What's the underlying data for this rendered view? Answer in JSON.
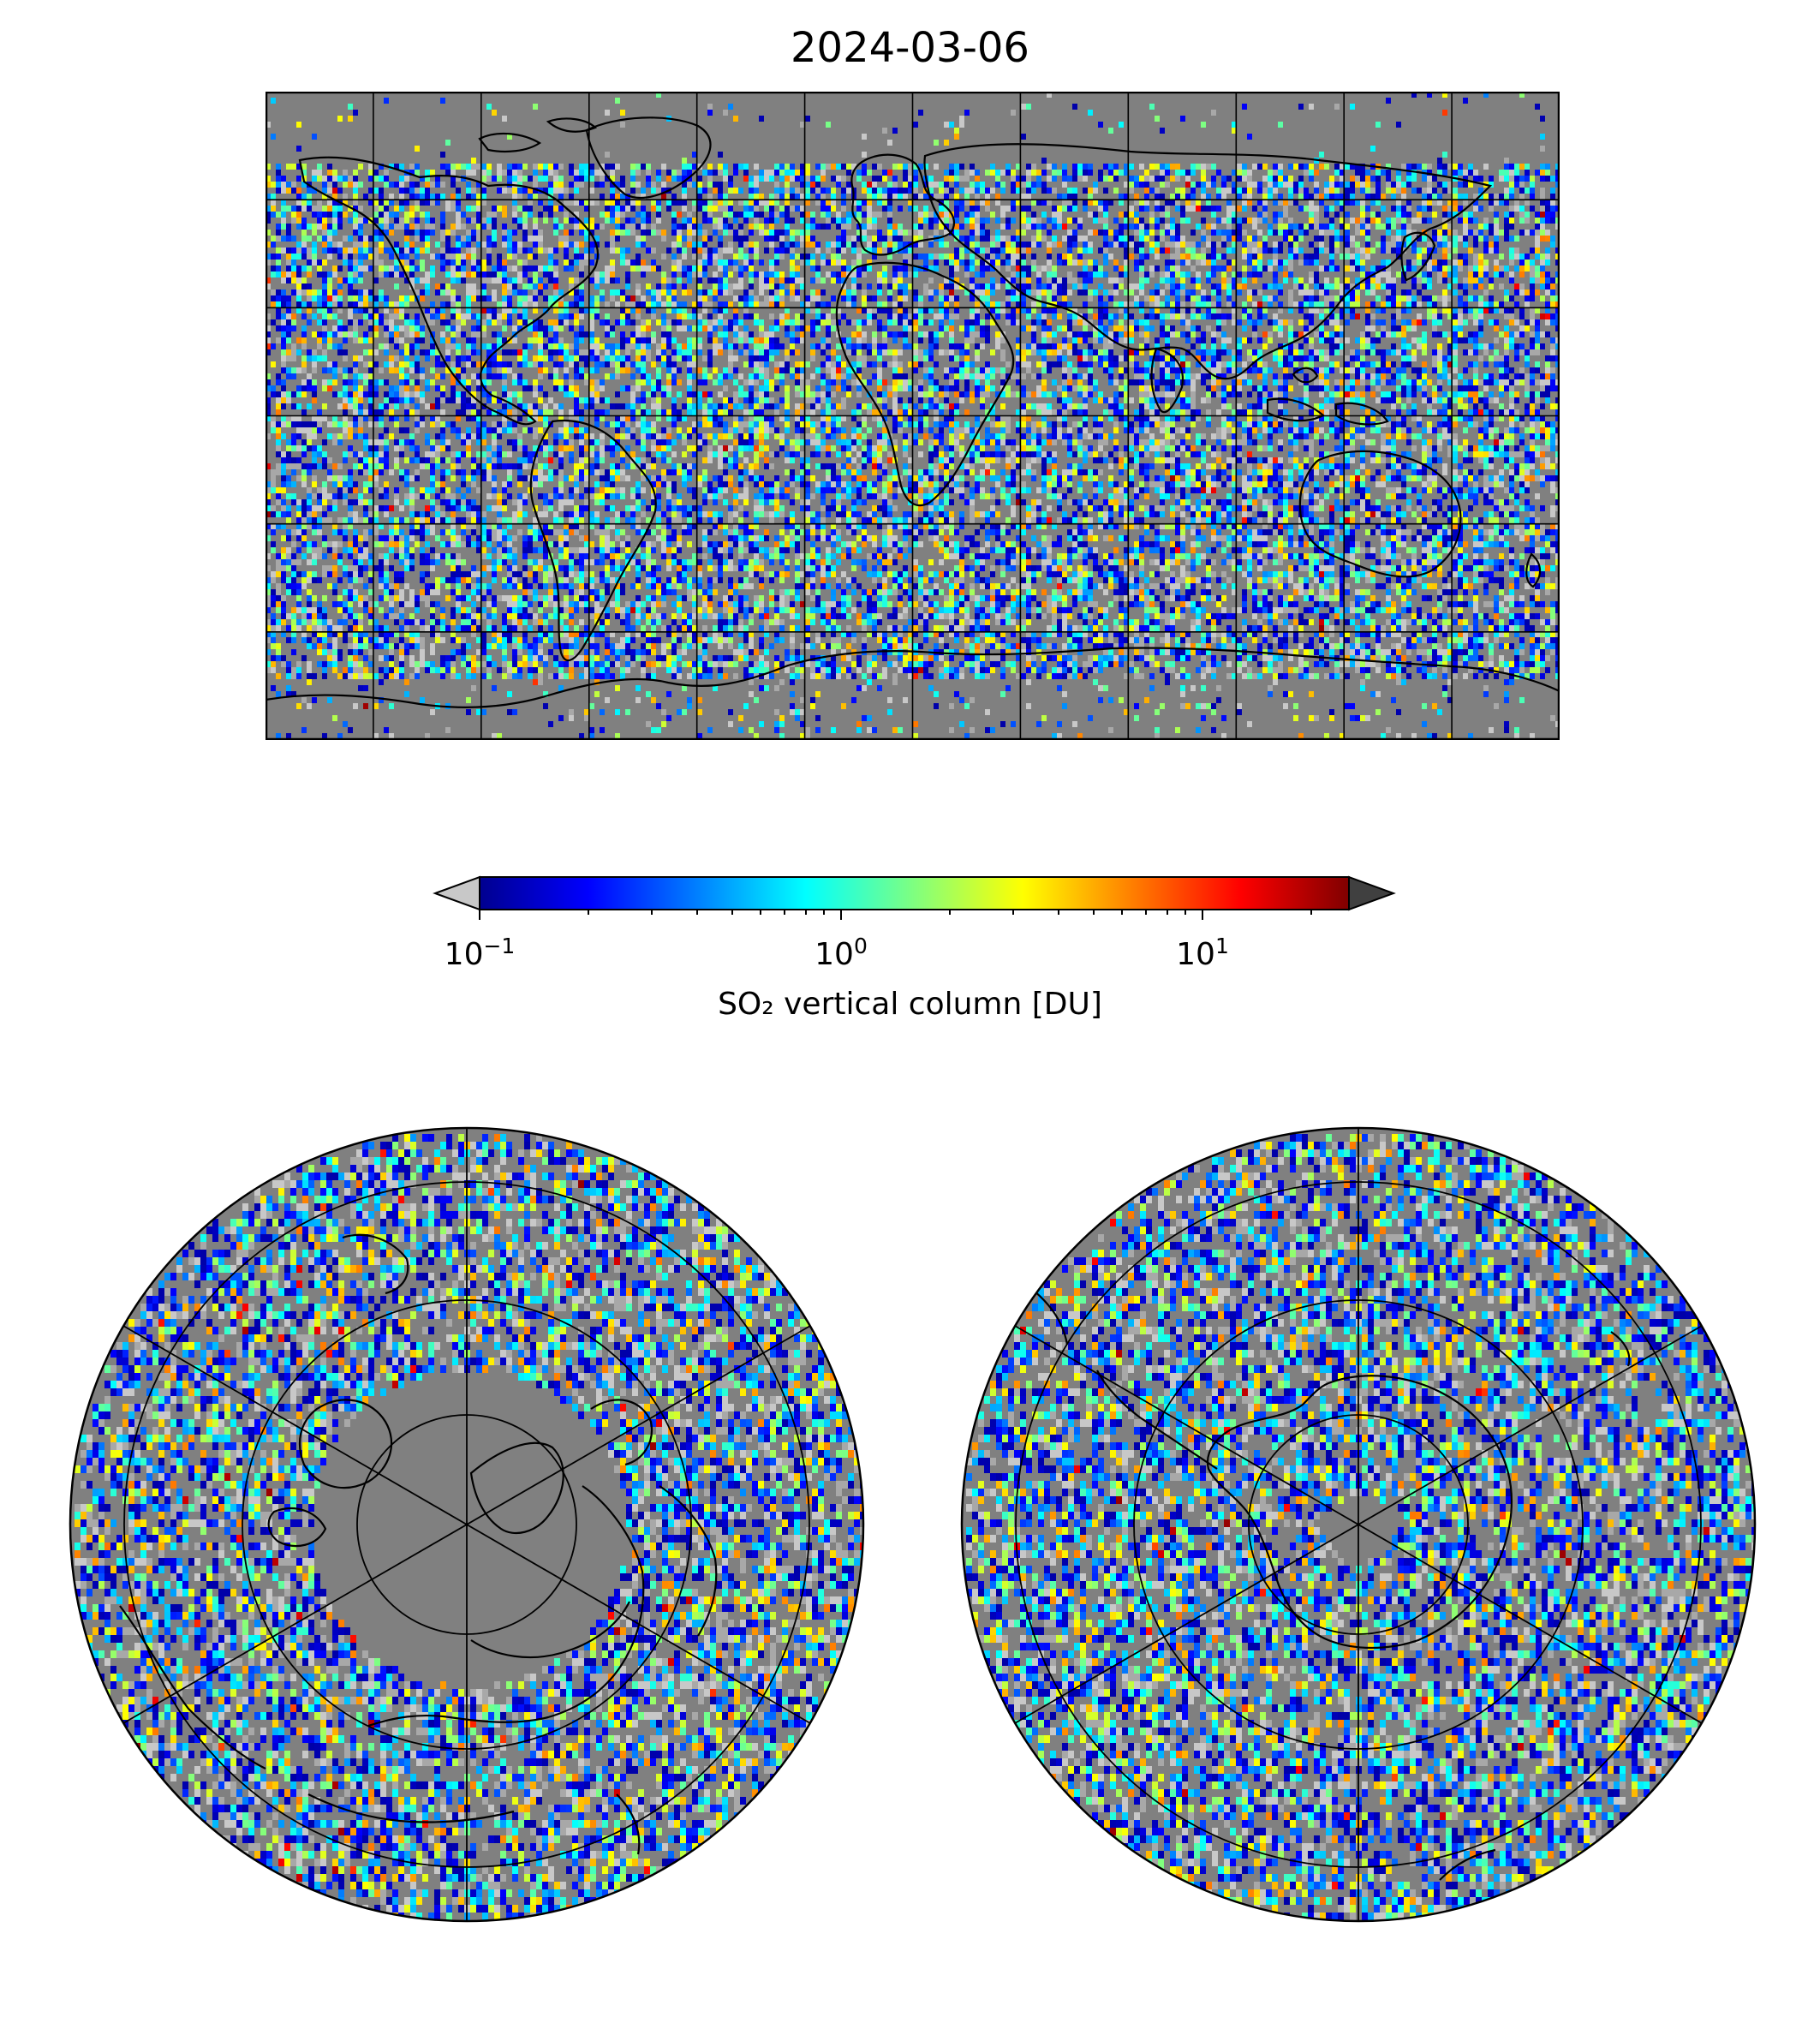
{
  "title": "2024-03-06",
  "colorbar": {
    "label": "SO₂ vertical column [DU]",
    "scale": "log",
    "range": [
      0.1,
      25
    ],
    "extend": "both",
    "under_color": "#c8c8c8",
    "over_color": "#404040",
    "colormap": "jet",
    "ticks": [
      {
        "base": "10",
        "exp": "−1",
        "value": 0.1
      },
      {
        "base": "10",
        "exp": "0",
        "value": 1
      },
      {
        "base": "10",
        "exp": "1",
        "value": 10
      }
    ]
  },
  "maps": {
    "background_color": "#808080",
    "coastline_color": "#000000",
    "world": {
      "projection": "plate-carree",
      "gridlines": "30 degree"
    },
    "north": {
      "projection": "north-polar-stereographic"
    },
    "south": {
      "projection": "south-polar-stereographic"
    }
  }
}
